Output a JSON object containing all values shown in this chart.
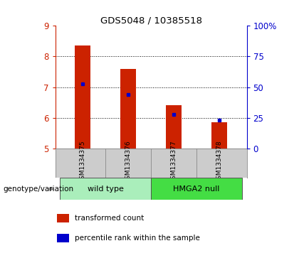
{
  "title": "GDS5048 / 10385518",
  "samples": [
    "GSM1334375",
    "GSM1334376",
    "GSM1334377",
    "GSM1334378"
  ],
  "transformed_counts": [
    8.35,
    7.6,
    6.4,
    5.85
  ],
  "percentile_ranks": [
    7.1,
    6.75,
    6.1,
    5.93
  ],
  "ylim": [
    5,
    9
  ],
  "yticks": [
    5,
    6,
    7,
    8,
    9
  ],
  "y2ticks": [
    0,
    25,
    50,
    75,
    100
  ],
  "y2labels": [
    "0",
    "25",
    "50",
    "75",
    "100%"
  ],
  "bar_base": 5.0,
  "bar_color": "#cc2200",
  "percentile_color": "#0000cc",
  "grid_color": "#000000",
  "groups": [
    {
      "label": "wild type",
      "samples": [
        0,
        1
      ],
      "color": "#aaeebb"
    },
    {
      "label": "HMGA2 null",
      "samples": [
        2,
        3
      ],
      "color": "#44dd44"
    }
  ],
  "genotype_label": "genotype/variation",
  "legend_items": [
    {
      "color": "#cc2200",
      "label": "transformed count"
    },
    {
      "color": "#0000cc",
      "label": "percentile rank within the sample"
    }
  ],
  "left_tick_color": "#cc2200",
  "right_tick_color": "#0000cc",
  "bg_color": "#ffffff",
  "plot_bg": "#ffffff",
  "label_area_color": "#cccccc",
  "bar_width": 0.35
}
